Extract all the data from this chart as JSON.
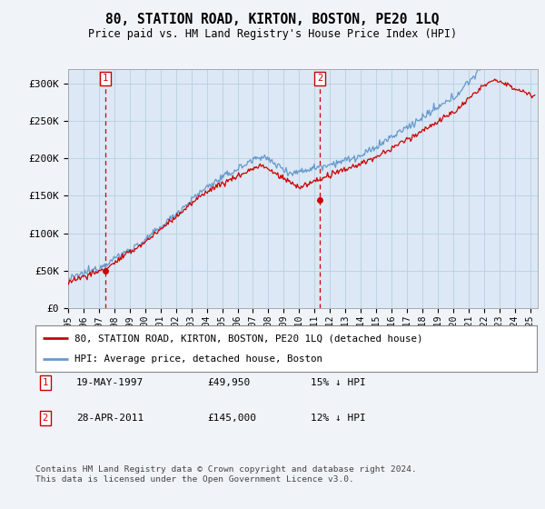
{
  "title": "80, STATION ROAD, KIRTON, BOSTON, PE20 1LQ",
  "subtitle": "Price paid vs. HM Land Registry's House Price Index (HPI)",
  "red_label": "80, STATION ROAD, KIRTON, BOSTON, PE20 1LQ (detached house)",
  "blue_label": "HPI: Average price, detached house, Boston",
  "transaction1_date": "19-MAY-1997",
  "transaction1_price": "£49,950",
  "transaction1_hpi": "15% ↓ HPI",
  "transaction2_date": "28-APR-2011",
  "transaction2_price": "£145,000",
  "transaction2_hpi": "12% ↓ HPI",
  "footnote": "Contains HM Land Registry data © Crown copyright and database right 2024.\nThis data is licensed under the Open Government Licence v3.0.",
  "ylabel_ticks": [
    "£0",
    "£50K",
    "£100K",
    "£150K",
    "£200K",
    "£250K",
    "£300K"
  ],
  "ylabel_values": [
    0,
    50000,
    100000,
    150000,
    200000,
    250000,
    300000
  ],
  "ylim": [
    0,
    320000
  ],
  "xlim_start": 1995.0,
  "xlim_end": 2025.5,
  "red_color": "#cc0000",
  "blue_color": "#6699cc",
  "dashed_color": "#cc0000",
  "bg_color": "#f0f4f8",
  "plot_bg": "#dce8f5",
  "grid_color": "#b8cfe0"
}
